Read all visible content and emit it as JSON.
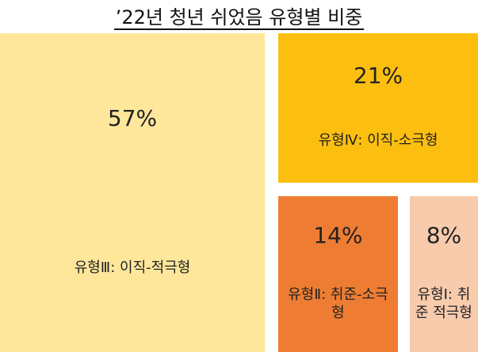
{
  "chart_data": {
    "type": "treemap",
    "title": "’22년 청년 쉬었음 유형별 비중",
    "categories": [
      "유형Ⅲ: 이직-적극형",
      "유형Ⅳ: 이직-소극형",
      "유형Ⅱ: 취준-소극형",
      "유형Ⅰ: 취준 적극형"
    ],
    "values": [
      57,
      21,
      14,
      8
    ],
    "value_labels": [
      "57%",
      "21%",
      "14%",
      "8%"
    ],
    "colors": [
      "#fee79b",
      "#fdbf0f",
      "#ee7d33",
      "#f8cbad"
    ]
  }
}
